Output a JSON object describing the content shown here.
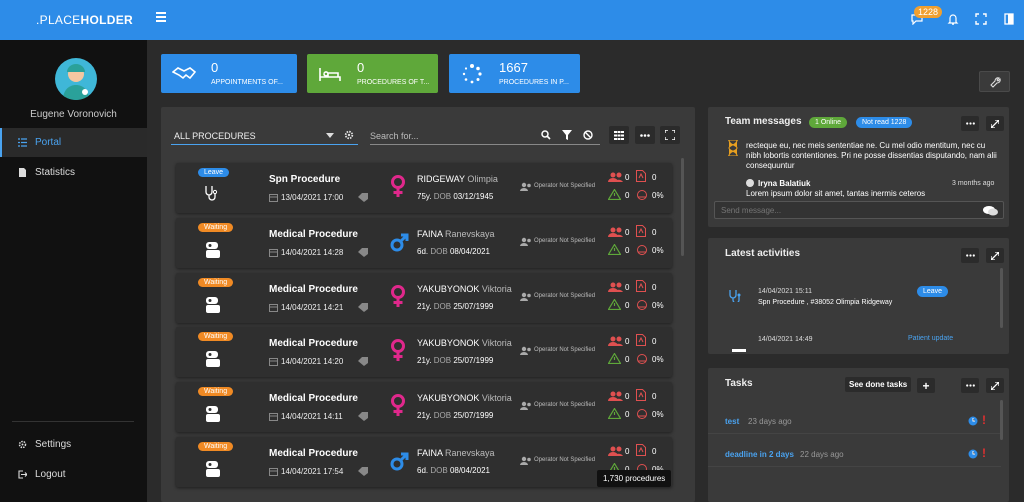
{
  "header": {
    "logo_prefix": ".PLACE",
    "logo_bold": "HOLDER",
    "notification_count": "1228"
  },
  "user": {
    "name": "Eugene Voronovich"
  },
  "sidebar": {
    "items": [
      {
        "label": "Portal"
      },
      {
        "label": "Statistics"
      }
    ],
    "bottom": [
      {
        "label": "Settings"
      },
      {
        "label": "Logout"
      }
    ]
  },
  "cards": [
    {
      "value": "0",
      "label": "APPOINTMENTS OF...",
      "color": "#2d8ce8"
    },
    {
      "value": "0",
      "label": "PROCEDURES OF T...",
      "color": "#5fa83a"
    },
    {
      "value": "1667",
      "label": "PROCEDURES IN P...",
      "color": "#2d8ce8"
    }
  ],
  "list": {
    "filter_label": "ALL PROCEDURES",
    "search_placeholder": "Search for...",
    "tooltip": "1,730 procedures",
    "rows": [
      {
        "status": "Leave",
        "status_color": "#2d8ce8",
        "title": "Spn Procedure",
        "date": "13/04/2021 17:00",
        "last": "RIDGEWAY",
        "first": "Olimpia",
        "age": "75y.",
        "dob_label": "DOB",
        "dob": "03/12/1945",
        "gender": "female",
        "operator": "Operator Not Specified",
        "c1": "0",
        "c2": "0",
        "c3": "0",
        "pct": "0%"
      },
      {
        "status": "Waiting",
        "status_color": "#f08a24",
        "title": "Medical Procedure",
        "date": "14/04/2021 14:28",
        "last": "FAINA",
        "first": "Ranevskaya",
        "age": "6d.",
        "dob_label": "DOB",
        "dob": "08/04/2021",
        "gender": "male",
        "operator": "Operator Not Specified",
        "c1": "0",
        "c2": "0",
        "c3": "0",
        "pct": "0%"
      },
      {
        "status": "Waiting",
        "status_color": "#f08a24",
        "title": "Medical Procedure",
        "date": "14/04/2021 14:21",
        "last": "YAKUBYONOK",
        "first": "Viktoria",
        "age": "21y.",
        "dob_label": "DOB",
        "dob": "25/07/1999",
        "gender": "female",
        "operator": "Operator Not Specified",
        "c1": "0",
        "c2": "0",
        "c3": "0",
        "pct": "0%"
      },
      {
        "status": "Waiting",
        "status_color": "#f08a24",
        "title": "Medical Procedure",
        "date": "14/04/2021 14:20",
        "last": "YAKUBYONOK",
        "first": "Viktoria",
        "age": "21y.",
        "dob_label": "DOB",
        "dob": "25/07/1999",
        "gender": "female",
        "operator": "Operator Not Specified",
        "c1": "0",
        "c2": "0",
        "c3": "0",
        "pct": "0%"
      },
      {
        "status": "Waiting",
        "status_color": "#f08a24",
        "title": "Medical Procedure",
        "date": "14/04/2021 14:11",
        "last": "YAKUBYONOK",
        "first": "Viktoria",
        "age": "21y.",
        "dob_label": "DOB",
        "dob": "25/07/1999",
        "gender": "female",
        "operator": "Operator Not Specified",
        "c1": "0",
        "c2": "0",
        "c3": "0",
        "pct": "0%"
      },
      {
        "status": "Waiting",
        "status_color": "#f08a24",
        "title": "Medical Procedure",
        "date": "14/04/2021 17:54",
        "last": "FAINA",
        "first": "Ranevskaya",
        "age": "6d.",
        "dob_label": "DOB",
        "dob": "08/04/2021",
        "gender": "male",
        "operator": "Operator Not Specified",
        "c1": "0",
        "c2": "0",
        "c3": "0",
        "pct": "0%"
      }
    ]
  },
  "messages": {
    "title": "Team messages",
    "online": "1 Online",
    "not_read": "Not read 1228",
    "msg1": "recteque eu, nec meis sententiae ne. Cu mel odio mentitum, nec cu nibh lobortis contentiones. Pri ne posse dissentias disputando, nam alii consequuntur",
    "author": "Iryna Balatiuk",
    "time": "3 months ago",
    "msg2": "Lorem ipsum dolor sit amet, tantas inermis ceteros",
    "placeholder": "Send message..."
  },
  "activities": {
    "title": "Latest activities",
    "items": [
      {
        "time": "14/04/2021 15:11",
        "text": "Spn Procedure , #38052 Olimpia Ridgeway",
        "tag": "Leave"
      },
      {
        "time": "14/04/2021 14:49",
        "tag": "Patient update"
      }
    ]
  },
  "tasks": {
    "title": "Tasks",
    "see_done": "See done tasks",
    "items": [
      {
        "name": "test",
        "ago": "23 days ago"
      },
      {
        "name": "deadline in 2 days",
        "ago": "22 days ago"
      }
    ]
  }
}
